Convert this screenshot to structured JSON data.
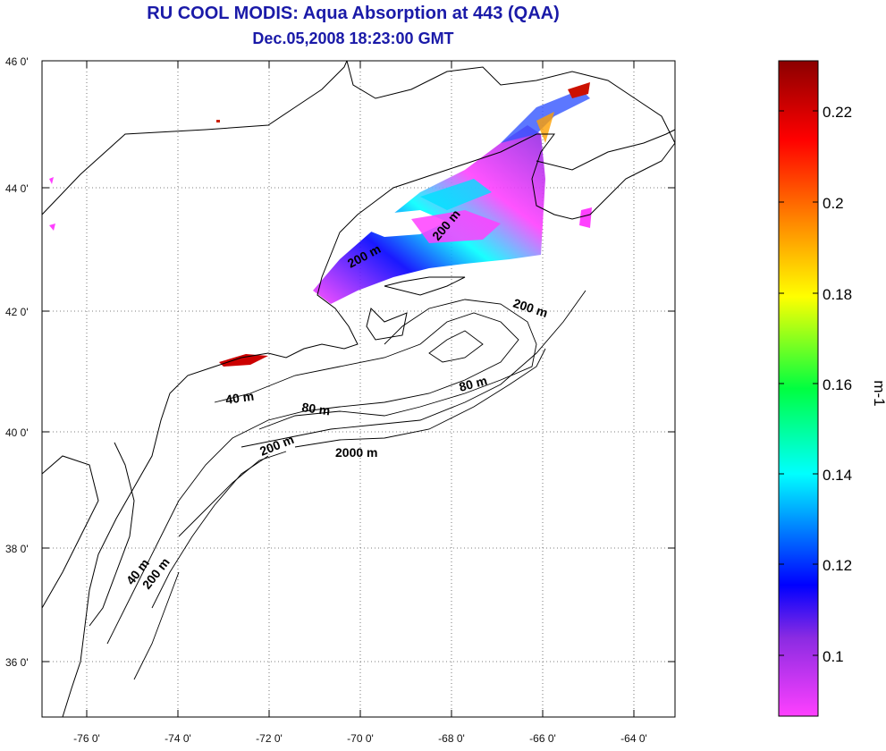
{
  "title": "RU COOL MODIS: Aqua Absorption at 443 (QAA)",
  "subtitle": "Dec.05,2008 18:23:00 GMT",
  "lat_ticks": [
    "46 0'",
    "44 0'",
    "42 0'",
    "40 0'",
    "38 0'",
    "36 0'"
  ],
  "lon_ticks": [
    "-76 0'",
    "-74 0'",
    "-72 0'",
    "-70 0'",
    "-68 0'",
    "-66 0'",
    "-64 0'"
  ],
  "colorbar": {
    "ticks": [
      "0.22",
      "0.2",
      "0.18",
      "0.16",
      "0.14",
      "0.12",
      "0.1"
    ],
    "unit": "m-1",
    "colors": [
      "#8b0000",
      "#ff0000",
      "#ff8c00",
      "#ffff00",
      "#00ff40",
      "#00ffff",
      "#0000ff",
      "#8a2be2",
      "#ff40ff"
    ]
  },
  "depth_labels": [
    "200 m",
    "200 m",
    "200 m",
    "80 m",
    "40 m",
    "80 m",
    "200 m",
    "2000 m",
    "40 m",
    "200 m"
  ]
}
